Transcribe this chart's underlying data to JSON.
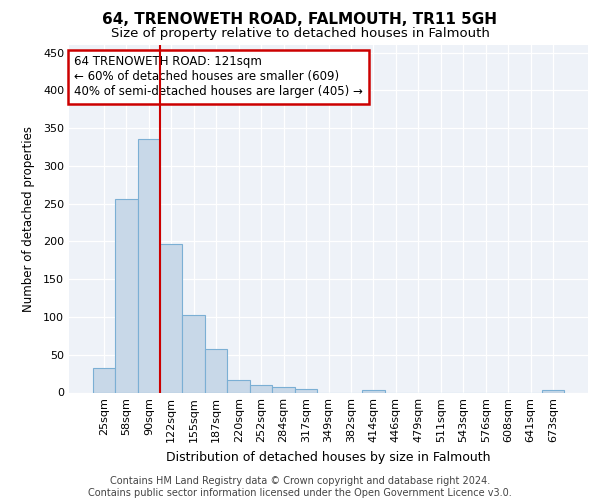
{
  "title1": "64, TRENOWETH ROAD, FALMOUTH, TR11 5GH",
  "title2": "Size of property relative to detached houses in Falmouth",
  "xlabel": "Distribution of detached houses by size in Falmouth",
  "ylabel": "Number of detached properties",
  "categories": [
    "25sqm",
    "58sqm",
    "90sqm",
    "122sqm",
    "155sqm",
    "187sqm",
    "220sqm",
    "252sqm",
    "284sqm",
    "317sqm",
    "349sqm",
    "382sqm",
    "414sqm",
    "446sqm",
    "479sqm",
    "511sqm",
    "543sqm",
    "576sqm",
    "608sqm",
    "641sqm",
    "673sqm"
  ],
  "values": [
    33,
    256,
    335,
    197,
    103,
    57,
    17,
    10,
    7,
    4,
    0,
    0,
    3,
    0,
    0,
    0,
    0,
    0,
    0,
    0,
    3
  ],
  "bar_color": "#c8d8e8",
  "bar_edge_color": "#7bafd4",
  "bar_width": 1.0,
  "redline_x": 3.0,
  "annotation_text_line1": "64 TRENOWETH ROAD: 121sqm",
  "annotation_text_line2": "← 60% of detached houses are smaller (609)",
  "annotation_text_line3": "40% of semi-detached houses are larger (405) →",
  "annotation_box_color": "#ffffff",
  "annotation_box_edge_color": "#cc0000",
  "ylim": [
    0,
    460
  ],
  "yticks": [
    0,
    50,
    100,
    150,
    200,
    250,
    300,
    350,
    400,
    450
  ],
  "footnote": "Contains HM Land Registry data © Crown copyright and database right 2024.\nContains public sector information licensed under the Open Government Licence v3.0.",
  "bg_color": "#eef2f8",
  "grid_color": "#ffffff",
  "title1_fontsize": 11,
  "title2_fontsize": 9.5,
  "xlabel_fontsize": 9,
  "ylabel_fontsize": 8.5,
  "tick_fontsize": 8,
  "annotation_fontsize": 8.5,
  "footnote_fontsize": 7
}
